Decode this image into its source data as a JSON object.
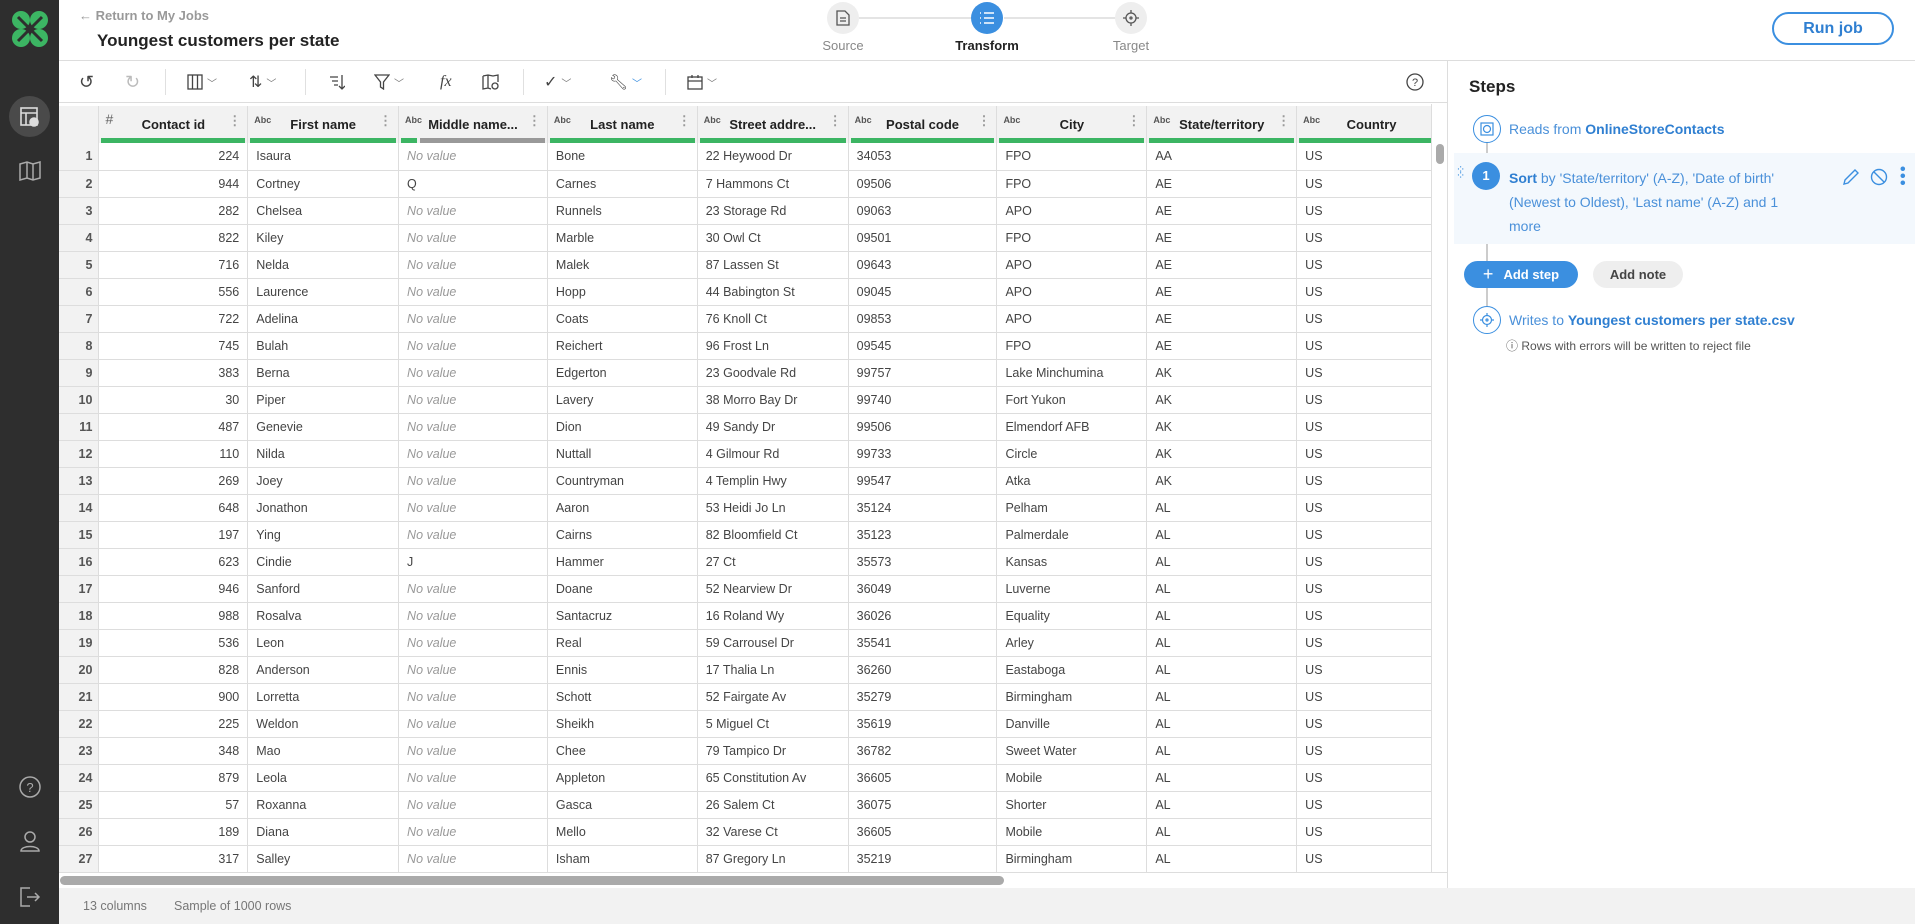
{
  "header": {
    "back_label": "← Return to My Jobs",
    "title": "Youngest customers per state",
    "run_label": "Run job"
  },
  "stepper": [
    {
      "label": "Source",
      "icon": "file-icon",
      "active": false
    },
    {
      "label": "Transform",
      "icon": "list-icon",
      "active": true
    },
    {
      "label": "Target",
      "icon": "target-icon",
      "active": false
    }
  ],
  "colors": {
    "accent": "#3b8fe0",
    "valid": "#3cb563",
    "empty": "#999999",
    "sidebar": "#2e2e2e"
  },
  "table": {
    "columns": [
      {
        "name": "Contact id",
        "type": "#",
        "valid": 1
      },
      {
        "name": "First name",
        "type": "Abc",
        "valid": 1
      },
      {
        "name": "Middle name...",
        "type": "Abc",
        "valid": 0.11
      },
      {
        "name": "Last name",
        "type": "Abc",
        "valid": 1
      },
      {
        "name": "Street addre...",
        "type": "Abc",
        "valid": 1
      },
      {
        "name": "Postal code",
        "type": "Abc",
        "valid": 1
      },
      {
        "name": "City",
        "type": "Abc",
        "valid": 1
      },
      {
        "name": "State/territory",
        "type": "Abc",
        "valid": 1
      },
      {
        "name": "Country",
        "type": "Abc",
        "valid": 1
      }
    ],
    "no_value": "No value",
    "rows": [
      [
        "224",
        "Isaura",
        "",
        "Bone",
        "22 Heywood Dr",
        "34053",
        "FPO",
        "AA",
        "US"
      ],
      [
        "944",
        "Cortney",
        "Q",
        "Carnes",
        "7 Hammons Ct",
        "09506",
        "FPO",
        "AE",
        "US"
      ],
      [
        "282",
        "Chelsea",
        "",
        "Runnels",
        "23 Storage Rd",
        "09063",
        "APO",
        "AE",
        "US"
      ],
      [
        "822",
        "Kiley",
        "",
        "Marble",
        "30 Owl Ct",
        "09501",
        "FPO",
        "AE",
        "US"
      ],
      [
        "716",
        "Nelda",
        "",
        "Malek",
        "87 Lassen St",
        "09643",
        "APO",
        "AE",
        "US"
      ],
      [
        "556",
        "Laurence",
        "",
        "Hopp",
        "44 Babington St",
        "09045",
        "APO",
        "AE",
        "US"
      ],
      [
        "722",
        "Adelina",
        "",
        "Coats",
        "76 Knoll Ct",
        "09853",
        "APO",
        "AE",
        "US"
      ],
      [
        "745",
        "Bulah",
        "",
        "Reichert",
        "96 Frost Ln",
        "09545",
        "FPO",
        "AE",
        "US"
      ],
      [
        "383",
        "Berna",
        "",
        "Edgerton",
        "23 Goodvale Rd",
        "99757",
        "Lake Minchumina",
        "AK",
        "US"
      ],
      [
        "30",
        "Piper",
        "",
        "Lavery",
        "38 Morro Bay Dr",
        "99740",
        "Fort Yukon",
        "AK",
        "US"
      ],
      [
        "487",
        "Genevie",
        "",
        "Dion",
        "49 Sandy Dr",
        "99506",
        "Elmendorf AFB",
        "AK",
        "US"
      ],
      [
        "110",
        "Nilda",
        "",
        "Nuttall",
        "4 Gilmour Rd",
        "99733",
        "Circle",
        "AK",
        "US"
      ],
      [
        "269",
        "Joey",
        "",
        "Countryman",
        "4 Templin Hwy",
        "99547",
        "Atka",
        "AK",
        "US"
      ],
      [
        "648",
        "Jonathon",
        "",
        "Aaron",
        "53 Heidi Jo Ln",
        "35124",
        "Pelham",
        "AL",
        "US"
      ],
      [
        "197",
        "Ying",
        "",
        "Cairns",
        "82 Bloomfield Ct",
        "35123",
        "Palmerdale",
        "AL",
        "US"
      ],
      [
        "623",
        "Cindie",
        "J",
        "Hammer",
        "27 Ct",
        "35573",
        "Kansas",
        "AL",
        "US"
      ],
      [
        "946",
        "Sanford",
        "",
        "Doane",
        "52 Nearview Dr",
        "36049",
        "Luverne",
        "AL",
        "US"
      ],
      [
        "988",
        "Rosalva",
        "",
        "Santacruz",
        "16 Roland Wy",
        "36026",
        "Equality",
        "AL",
        "US"
      ],
      [
        "536",
        "Leon",
        "",
        "Real",
        "59 Carrousel Dr",
        "35541",
        "Arley",
        "AL",
        "US"
      ],
      [
        "828",
        "Anderson",
        "",
        "Ennis",
        "17 Thalia Ln",
        "36260",
        "Eastaboga",
        "AL",
        "US"
      ],
      [
        "900",
        "Lorretta",
        "",
        "Schott",
        "52 Fairgate Av",
        "35279",
        "Birmingham",
        "AL",
        "US"
      ],
      [
        "225",
        "Weldon",
        "",
        "Sheikh",
        "5 Miguel Ct",
        "35619",
        "Danville",
        "AL",
        "US"
      ],
      [
        "348",
        "Mao",
        "",
        "Chee",
        "79 Tampico Dr",
        "36782",
        "Sweet Water",
        "AL",
        "US"
      ],
      [
        "879",
        "Leola",
        "",
        "Appleton",
        "65 Constitution Av",
        "36605",
        "Mobile",
        "AL",
        "US"
      ],
      [
        "57",
        "Roxanna",
        "",
        "Gasca",
        "26 Salem Ct",
        "36075",
        "Shorter",
        "AL",
        "US"
      ],
      [
        "189",
        "Diana",
        "",
        "Mello",
        "32 Varese Ct",
        "36605",
        "Mobile",
        "AL",
        "US"
      ],
      [
        "317",
        "Salley",
        "",
        "Isham",
        "87 Gregory Ln",
        "35219",
        "Birmingham",
        "AL",
        "US"
      ]
    ]
  },
  "footer": {
    "columns": "13 columns",
    "sample": "Sample of 1000 rows"
  },
  "steps": {
    "title": "Steps",
    "reads_prefix": "Reads from",
    "reads_source": "OnlineStoreContacts",
    "sort_number": "1",
    "sort_keyword": "Sort",
    "sort_text": " by 'State/territory' (A-Z), 'Date of birth' (Newest to Oldest), 'Last name' (A-Z) and 1 more",
    "add_step": "Add step",
    "add_note": "Add note",
    "writes_prefix": "Writes to",
    "writes_target": "Youngest customers per state.csv",
    "reject_note": "Rows with errors will be written to reject file"
  }
}
